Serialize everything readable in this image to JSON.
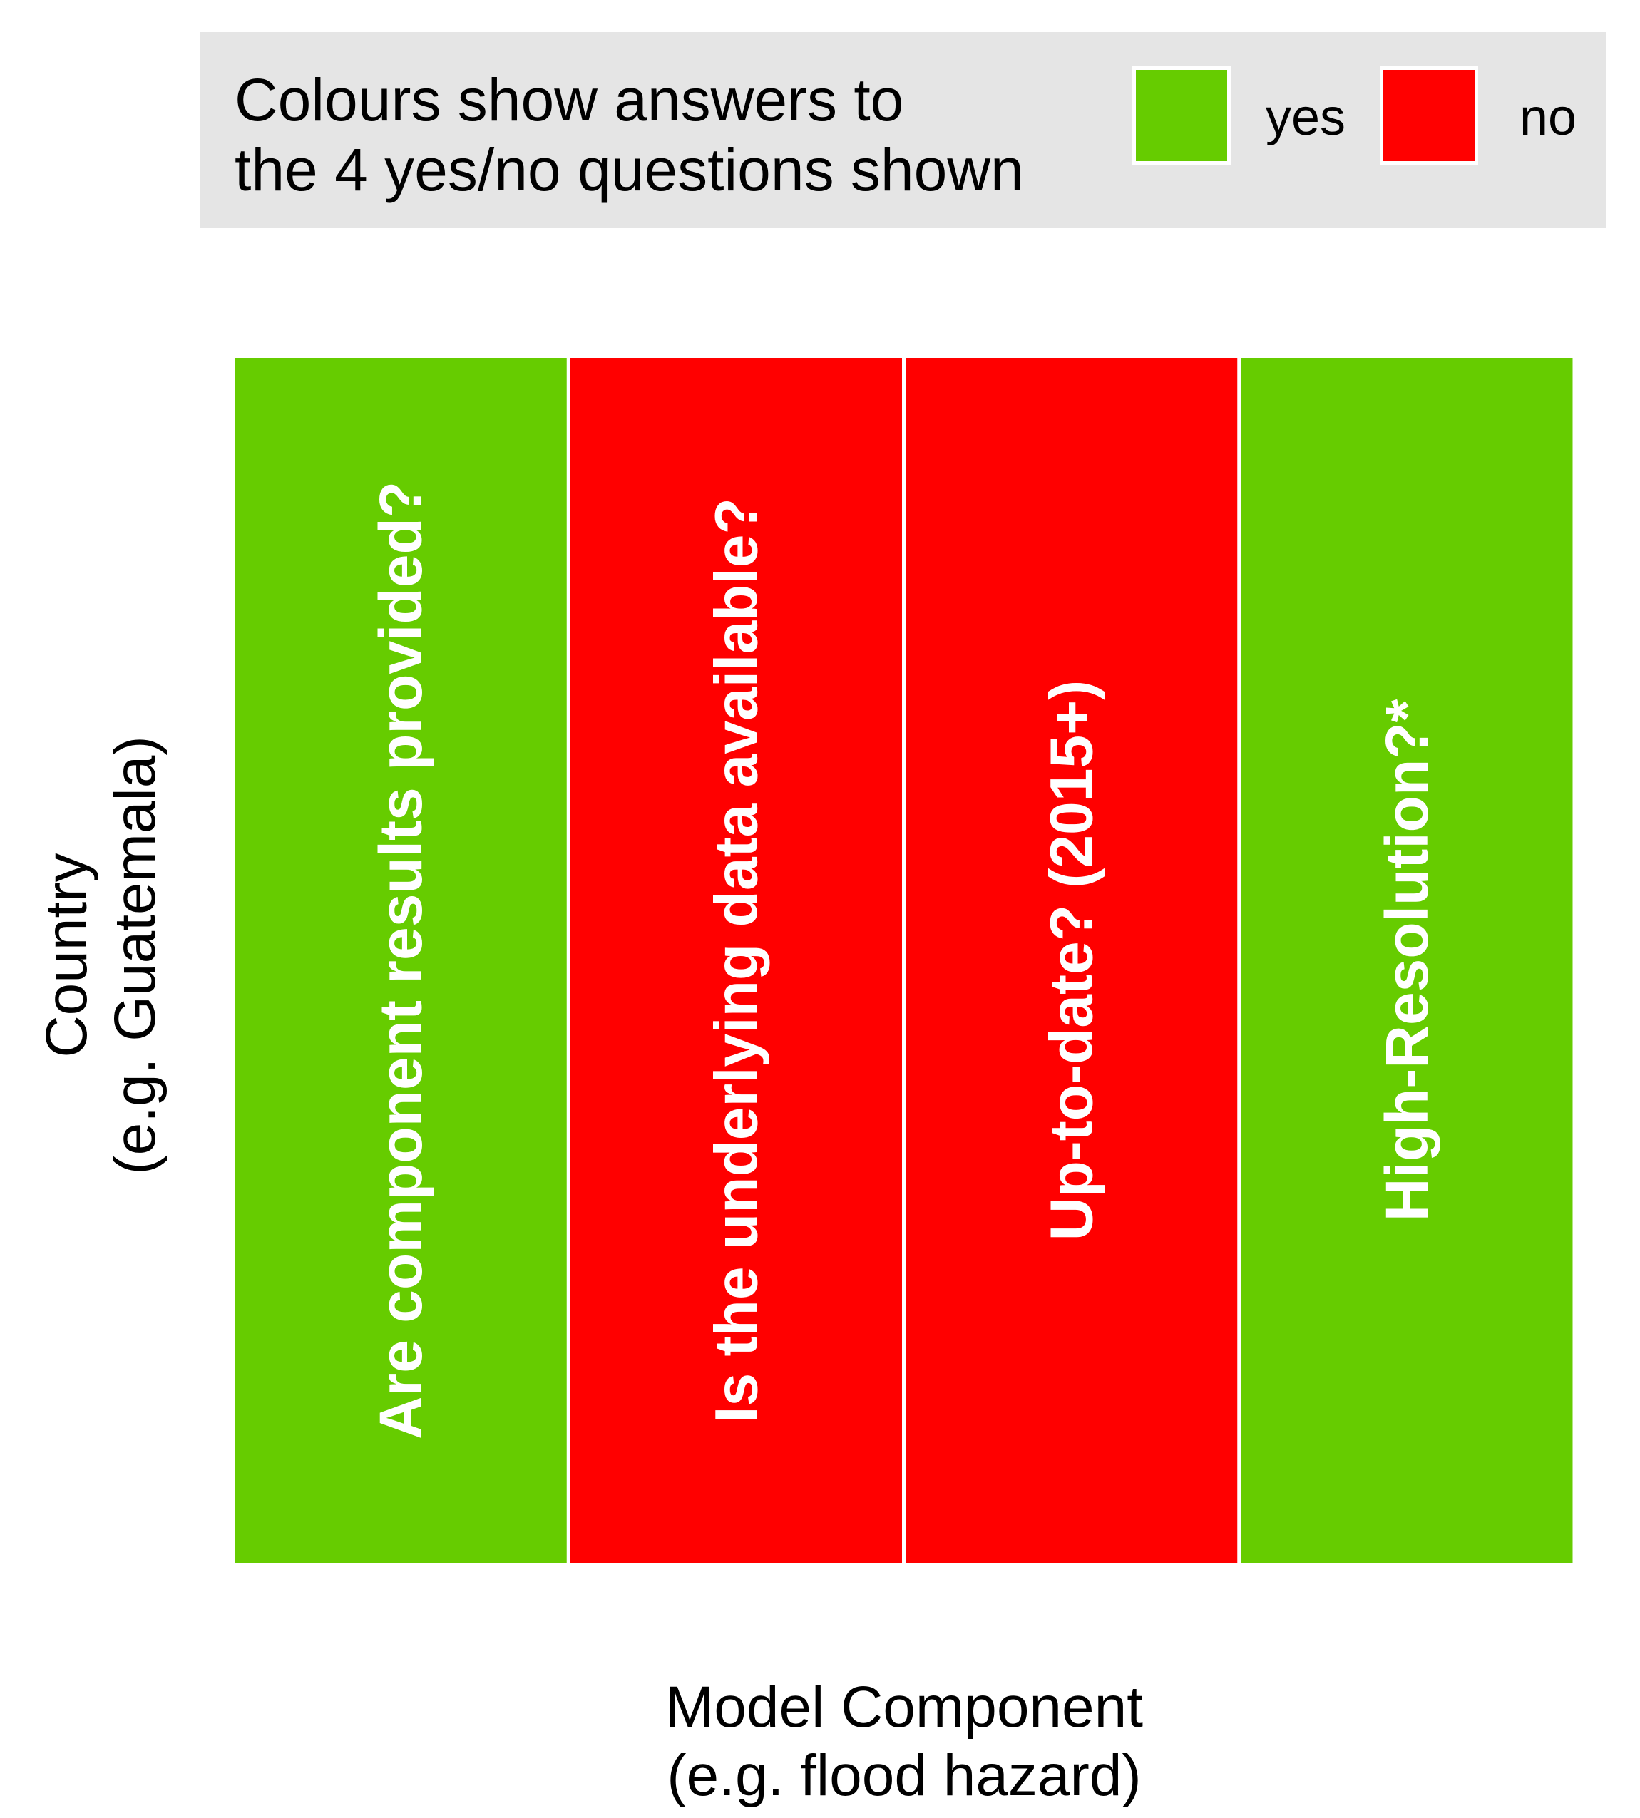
{
  "legend": {
    "title_lines": [
      "Colours show answers to",
      "the 4 yes/no questions shown"
    ],
    "items": [
      {
        "label": "yes",
        "color": "#66cc00"
      },
      {
        "label": "no",
        "color": "#ff0000"
      }
    ]
  },
  "chart_data": {
    "type": "heatmap",
    "title": "",
    "xlabel_lines": [
      "Model Component",
      "(e.g. flood hazard)"
    ],
    "ylabel_lines": [
      "Country",
      "(e.g. Guatemala)"
    ],
    "categories": [
      "Are component results provided?",
      "Is the underlying data available?",
      "Up-to-date? (2015+)",
      "High-Resolution?*"
    ],
    "values": [
      "yes",
      "no",
      "no",
      "yes"
    ],
    "colors": {
      "yes": "#66cc00",
      "no": "#ff0000"
    },
    "legend_position": "top"
  }
}
